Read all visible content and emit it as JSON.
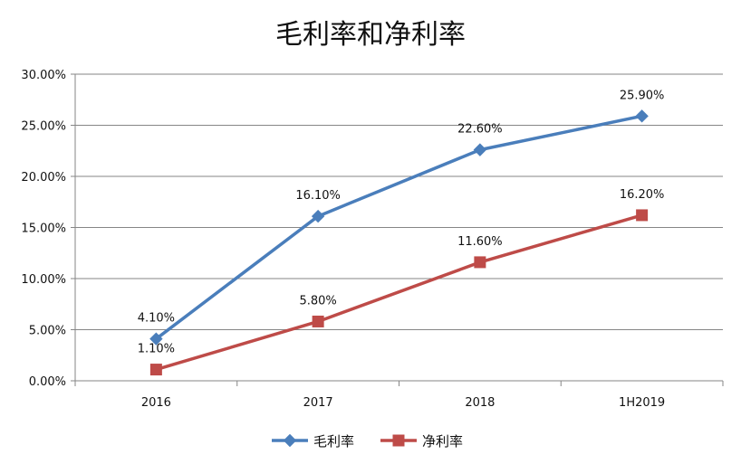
{
  "chart_data": {
    "type": "line",
    "title": "毛利率和净利率",
    "categories": [
      "2016",
      "2017",
      "2018",
      "1H2019"
    ],
    "series": [
      {
        "name": "毛利率",
        "values": [
          4.1,
          16.1,
          22.6,
          25.9
        ],
        "labels": [
          "4.10%",
          "16.10%",
          "22.60%",
          "25.90%"
        ],
        "color": "#4a7ebb",
        "marker": "diamond"
      },
      {
        "name": "净利率",
        "values": [
          1.1,
          5.8,
          11.6,
          16.2
        ],
        "labels": [
          "1.10%",
          "5.80%",
          "11.60%",
          "16.20%"
        ],
        "color": "#be4b48",
        "marker": "square"
      }
    ],
    "y_ticks": [
      "0.00%",
      "5.00%",
      "10.00%",
      "15.00%",
      "20.00%",
      "25.00%",
      "30.00%"
    ],
    "y_tick_values": [
      0,
      5,
      10,
      15,
      20,
      25,
      30
    ],
    "ylim": [
      0,
      30
    ],
    "grid": true,
    "legend_position": "bottom"
  }
}
